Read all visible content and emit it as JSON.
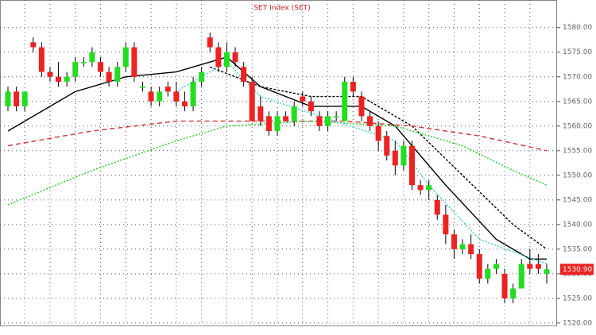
{
  "chart_data": {
    "type": "candlestick",
    "title": "SET Index (SET)",
    "open": [
      1564,
      1567,
      1564,
      1577,
      1576,
      1571,
      1570,
      1569,
      1570,
      1573,
      1573,
      1573,
      1571,
      1569,
      1572,
      1576,
      1568,
      1567,
      1565,
      1568,
      1567,
      1565,
      1564,
      1569,
      1578,
      1576,
      1572,
      1575,
      1572,
      1569,
      1564,
      1562,
      1559,
      1562,
      1561,
      1566,
      1565,
      1562,
      1560,
      1562,
      1561,
      1569,
      1566,
      1562,
      1560,
      1558,
      1555,
      1552,
      1556,
      1548,
      1547,
      1545,
      1542,
      1538,
      1535,
      1536,
      1534,
      1529,
      1531,
      1530,
      1525,
      1527,
      1532,
      1532,
      1530
    ],
    "high": [
      1568,
      1568,
      1567,
      1578,
      1577,
      1572,
      1573,
      1571,
      1574,
      1574,
      1576,
      1574,
      1572,
      1573,
      1577,
      1577,
      1569,
      1568,
      1568,
      1569,
      1569,
      1567,
      1570,
      1572,
      1579,
      1577,
      1577,
      1576,
      1573,
      1570,
      1566,
      1563,
      1563,
      1563,
      1565,
      1567,
      1566,
      1563,
      1563,
      1563,
      1570,
      1570,
      1567,
      1563,
      1561,
      1559,
      1557,
      1557,
      1557,
      1549,
      1549,
      1546,
      1544,
      1539,
      1537,
      1538,
      1535,
      1532,
      1533,
      1531,
      1528,
      1533,
      1535,
      1534,
      1532
    ],
    "low": [
      1563,
      1563,
      1563,
      1575,
      1570,
      1569,
      1568,
      1568,
      1569,
      1572,
      1572,
      1570,
      1568,
      1568,
      1571,
      1569,
      1567,
      1564,
      1564,
      1566,
      1564,
      1563,
      1563,
      1568,
      1575,
      1571,
      1571,
      1572,
      1568,
      1561,
      1560,
      1558,
      1558,
      1561,
      1560,
      1564,
      1562,
      1559,
      1559,
      1561,
      1561,
      1566,
      1561,
      1559,
      1555,
      1553,
      1550,
      1551,
      1547,
      1546,
      1545,
      1541,
      1536,
      1533,
      1534,
      1533,
      1528,
      1528,
      1530,
      1524,
      1524,
      1527,
      1530,
      1530,
      1528
    ],
    "close": [
      1567,
      1564,
      1567,
      1576,
      1571,
      1570,
      1569,
      1570,
      1573,
      1573,
      1575,
      1571,
      1569,
      1572,
      1576,
      1570,
      1568,
      1565,
      1567,
      1567,
      1565,
      1564,
      1569,
      1571,
      1576,
      1572,
      1575,
      1573,
      1569,
      1561,
      1561,
      1559,
      1562,
      1561,
      1564,
      1565,
      1563,
      1560,
      1562,
      1562,
      1569,
      1567,
      1562,
      1560,
      1557,
      1554,
      1552,
      1556,
      1548,
      1547,
      1548,
      1542,
      1538,
      1535,
      1536,
      1534,
      1529,
      1531,
      1532,
      1525,
      1527,
      1532,
      1531,
      1531,
      1530.9
    ],
    "up_color": "#22dd22",
    "down_color": "#ee2222",
    "lines": [
      {
        "color": "#000000",
        "dash": "none",
        "x": [
          0,
          8,
          14,
          20,
          26,
          30,
          36,
          42,
          46,
          52,
          58,
          62,
          64
        ],
        "values": [
          1559,
          1567,
          1570,
          1571,
          1574,
          1568,
          1564,
          1564,
          1560,
          1548,
          1537,
          1533,
          1533
        ]
      },
      {
        "color": "#000000",
        "dash": "3,2",
        "x": [
          24,
          30,
          36,
          42,
          48,
          54,
          60,
          64
        ],
        "values": [
          1572,
          1568,
          1566,
          1566,
          1560,
          1550,
          1540,
          1535
        ]
      },
      {
        "color": "#cc3333",
        "dash": "6,4",
        "x": [
          0,
          10,
          20,
          30,
          40,
          48,
          56,
          64
        ],
        "values": [
          1556,
          1559,
          1561,
          1561,
          1561,
          1560,
          1558,
          1555
        ]
      },
      {
        "color": "#22cc22",
        "dash": "2,2",
        "x": [
          0,
          10,
          20,
          26,
          36,
          46,
          54,
          60,
          64
        ],
        "values": [
          1544,
          1551,
          1557,
          1560,
          1561,
          1560,
          1556,
          1551,
          1548
        ]
      },
      {
        "color": "#33cccc",
        "dash": "2,2",
        "x": [
          20,
          26,
          30,
          46,
          50,
          56,
          64
        ],
        "values": [
          1567,
          1573,
          1566,
          1557,
          1548,
          1537,
          1532
        ]
      }
    ],
    "ylim": [
      1519.5,
      1585.6
    ],
    "yticks": [
      {
        "value": 1520,
        "label": "1520.00"
      },
      {
        "value": 1525,
        "label": "1525.00"
      },
      {
        "value": 1530,
        "label": "1530.00"
      },
      {
        "value": 1535,
        "label": "1535.00"
      },
      {
        "value": 1540,
        "label": "1540.00"
      },
      {
        "value": 1545,
        "label": "1545.00"
      },
      {
        "value": 1550,
        "label": "1550.00"
      },
      {
        "value": 1555,
        "label": "1555.00"
      },
      {
        "value": 1560,
        "label": "1560.00"
      },
      {
        "value": 1565,
        "label": "1565.00"
      },
      {
        "value": 1570,
        "label": "1570.00"
      },
      {
        "value": 1575,
        "label": "1575.00"
      },
      {
        "value": 1580,
        "label": "1580.00"
      }
    ],
    "last_price": {
      "value": 1530.9,
      "label": "1530.90"
    },
    "grid": true
  }
}
